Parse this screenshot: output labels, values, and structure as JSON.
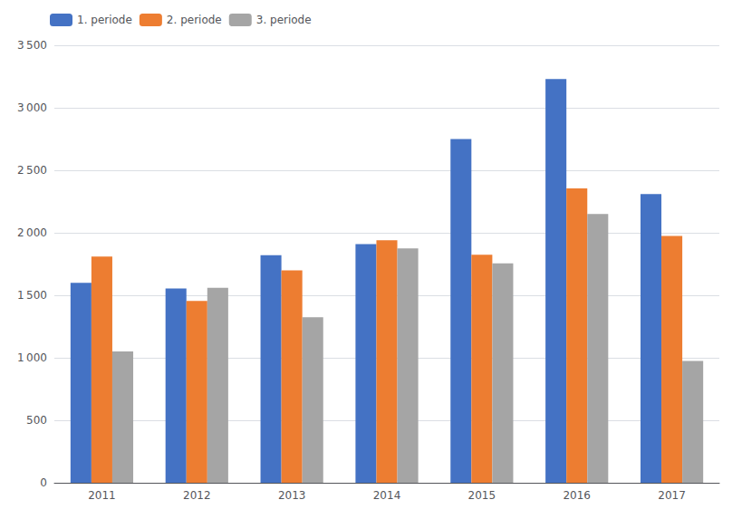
{
  "chart_data": {
    "type": "bar",
    "categories": [
      "2011",
      "2012",
      "2013",
      "2014",
      "2015",
      "2016",
      "2017"
    ],
    "series": [
      {
        "name": "1. periode",
        "color": "#4472C4",
        "values": [
          1600,
          1555,
          1820,
          1910,
          2750,
          3230,
          2310
        ]
      },
      {
        "name": "2. periode",
        "color": "#ED7D31",
        "values": [
          1810,
          1455,
          1700,
          1940,
          1825,
          2355,
          1975
        ]
      },
      {
        "name": "3. periode",
        "color": "#A5A5A5",
        "values": [
          1050,
          1560,
          1325,
          1875,
          1755,
          2150,
          975
        ]
      }
    ],
    "ylim": [
      0,
      3500
    ],
    "yticks": [
      0,
      500,
      {
        "value": 1000,
        "label": "1 000"
      },
      {
        "value": 1500,
        "label": "1 500"
      },
      {
        "value": 2000,
        "label": "2 000"
      },
      {
        "value": 2500,
        "label": "2 500"
      },
      {
        "value": 3000,
        "label": "3 000"
      },
      {
        "value": 3500,
        "label": "3 500"
      }
    ],
    "grid": true,
    "legend": "upper left"
  }
}
